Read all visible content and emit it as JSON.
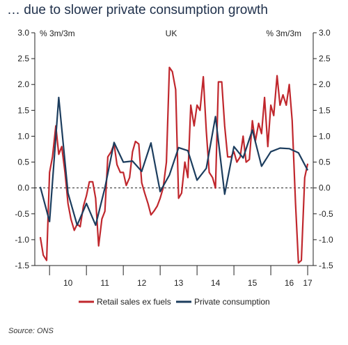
{
  "title": "… due to slower private consumption growth",
  "source": "Source: ONS",
  "chart_data": {
    "type": "line",
    "title": "UK",
    "ylabel_left": "% 3m/3m",
    "ylabel_right": "% 3m/3m",
    "ylim": [
      -1.5,
      3.0
    ],
    "yticks": [
      "-1.5",
      "-1.0",
      "-0.5",
      "0.0",
      "0.5",
      "1.0",
      "1.5",
      "2.0",
      "2.5",
      "3.0"
    ],
    "xlim": [
      2009.6,
      2017.15
    ],
    "xticks": [
      {
        "label": "10",
        "x": 2010.5
      },
      {
        "label": "11",
        "x": 2011.5
      },
      {
        "label": "12",
        "x": 2012.5
      },
      {
        "label": "13",
        "x": 2013.5
      },
      {
        "label": "14",
        "x": 2014.5
      },
      {
        "label": "15",
        "x": 2015.5
      },
      {
        "label": "16",
        "x": 2016.5
      },
      {
        "label": "17",
        "x": 2017.0
      }
    ],
    "zero_line": "dashed",
    "legend_position": "bottom",
    "series": [
      {
        "name": "Retail sales ex fuels",
        "color": "#c0272d",
        "points": [
          [
            2009.75,
            -0.95
          ],
          [
            2009.83,
            -1.3
          ],
          [
            2009.92,
            -1.4
          ],
          [
            2010.0,
            0.3
          ],
          [
            2010.08,
            0.6
          ],
          [
            2010.17,
            1.2
          ],
          [
            2010.25,
            0.65
          ],
          [
            2010.33,
            0.8
          ],
          [
            2010.42,
            0.3
          ],
          [
            2010.5,
            -0.3
          ],
          [
            2010.58,
            -0.6
          ],
          [
            2010.67,
            -0.82
          ],
          [
            2010.75,
            -0.7
          ],
          [
            2010.83,
            -0.75
          ],
          [
            2010.92,
            -0.35
          ],
          [
            2011.0,
            -0.15
          ],
          [
            2011.08,
            0.12
          ],
          [
            2011.17,
            0.12
          ],
          [
            2011.25,
            -0.2
          ],
          [
            2011.33,
            -1.12
          ],
          [
            2011.42,
            -0.6
          ],
          [
            2011.5,
            -0.45
          ],
          [
            2011.58,
            0.6
          ],
          [
            2011.67,
            0.7
          ],
          [
            2011.75,
            0.85
          ],
          [
            2011.83,
            0.45
          ],
          [
            2011.92,
            0.3
          ],
          [
            2012.0,
            0.3
          ],
          [
            2012.08,
            0.05
          ],
          [
            2012.17,
            0.2
          ],
          [
            2012.25,
            0.7
          ],
          [
            2012.33,
            0.9
          ],
          [
            2012.42,
            0.85
          ],
          [
            2012.5,
            0.1
          ],
          [
            2012.58,
            -0.1
          ],
          [
            2012.67,
            -0.3
          ],
          [
            2012.75,
            -0.52
          ],
          [
            2012.83,
            -0.45
          ],
          [
            2012.92,
            -0.35
          ],
          [
            2013.0,
            -0.2
          ],
          [
            2013.08,
            0.0
          ],
          [
            2013.17,
            0.5
          ],
          [
            2013.25,
            2.33
          ],
          [
            2013.33,
            2.25
          ],
          [
            2013.42,
            1.9
          ],
          [
            2013.5,
            -0.2
          ],
          [
            2013.58,
            -0.1
          ],
          [
            2013.67,
            0.5
          ],
          [
            2013.75,
            0.2
          ],
          [
            2013.83,
            1.6
          ],
          [
            2013.92,
            1.2
          ],
          [
            2014.0,
            1.6
          ],
          [
            2014.08,
            1.5
          ],
          [
            2014.17,
            2.15
          ],
          [
            2014.25,
            1.1
          ],
          [
            2014.33,
            0.3
          ],
          [
            2014.42,
            0.2
          ],
          [
            2014.5,
            0.0
          ],
          [
            2014.58,
            2.05
          ],
          [
            2014.67,
            2.05
          ],
          [
            2014.75,
            1.2
          ],
          [
            2014.83,
            0.6
          ],
          [
            2014.92,
            0.6
          ],
          [
            2015.0,
            0.7
          ],
          [
            2015.08,
            0.5
          ],
          [
            2015.17,
            0.6
          ],
          [
            2015.25,
            1.0
          ],
          [
            2015.33,
            0.5
          ],
          [
            2015.42,
            0.55
          ],
          [
            2015.5,
            1.3
          ],
          [
            2015.58,
            0.9
          ],
          [
            2015.67,
            1.25
          ],
          [
            2015.75,
            1.05
          ],
          [
            2015.83,
            1.75
          ],
          [
            2015.92,
            0.8
          ],
          [
            2016.0,
            1.6
          ],
          [
            2016.08,
            1.4
          ],
          [
            2016.17,
            2.17
          ],
          [
            2016.25,
            1.6
          ],
          [
            2016.33,
            1.8
          ],
          [
            2016.42,
            1.6
          ],
          [
            2016.5,
            2.0
          ],
          [
            2016.58,
            1.3
          ],
          [
            2016.67,
            -0.3
          ],
          [
            2016.75,
            -1.45
          ],
          [
            2016.83,
            -1.4
          ],
          [
            2016.92,
            0.2
          ],
          [
            2017.0,
            0.47
          ]
        ]
      },
      {
        "name": "Private consumption",
        "color": "#1c3d5e",
        "points": [
          [
            2009.75,
            0.02
          ],
          [
            2010.0,
            -0.65
          ],
          [
            2010.25,
            1.75
          ],
          [
            2010.5,
            -0.1
          ],
          [
            2010.75,
            -0.72
          ],
          [
            2011.0,
            -0.3
          ],
          [
            2011.25,
            -0.72
          ],
          [
            2011.5,
            0.0
          ],
          [
            2011.75,
            0.88
          ],
          [
            2012.0,
            0.5
          ],
          [
            2012.25,
            0.52
          ],
          [
            2012.5,
            0.32
          ],
          [
            2012.75,
            0.87
          ],
          [
            2013.0,
            -0.07
          ],
          [
            2013.25,
            0.25
          ],
          [
            2013.5,
            0.78
          ],
          [
            2013.75,
            0.72
          ],
          [
            2014.0,
            0.15
          ],
          [
            2014.25,
            0.38
          ],
          [
            2014.5,
            1.38
          ],
          [
            2014.75,
            -0.12
          ],
          [
            2015.0,
            0.8
          ],
          [
            2015.25,
            0.58
          ],
          [
            2015.5,
            1.12
          ],
          [
            2015.75,
            0.42
          ],
          [
            2016.0,
            0.7
          ],
          [
            2016.25,
            0.77
          ],
          [
            2016.5,
            0.76
          ],
          [
            2016.75,
            0.68
          ],
          [
            2017.0,
            0.34
          ]
        ]
      }
    ]
  }
}
